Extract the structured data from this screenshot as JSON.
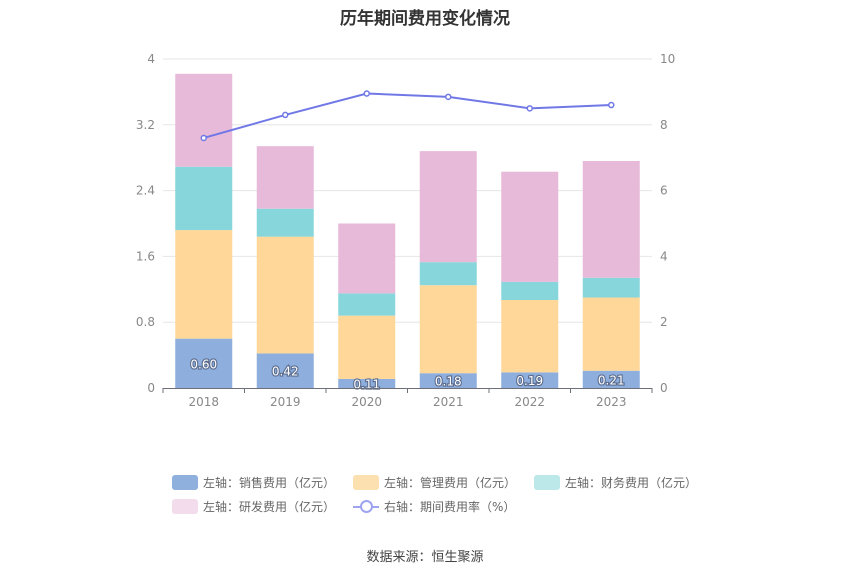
{
  "title": "历年期间费用变化情况",
  "source": "数据来源：恒生聚源",
  "legend": [
    {
      "label": "左轴：销售费用（亿元）",
      "color": "#8fb0dd",
      "kind": "bar"
    },
    {
      "label": "左轴：管理费用（亿元）",
      "color": "#fde0b0",
      "kind": "bar"
    },
    {
      "label": "左轴：财务费用（亿元）",
      "color": "#bde8ea",
      "kind": "bar"
    },
    {
      "label": "左轴：研发费用（亿元）",
      "color": "#f3dcec",
      "kind": "bar"
    },
    {
      "label": "右轴：期间费用率（%）",
      "color": "#9da3ee",
      "kind": "line"
    }
  ],
  "chart_data": {
    "type": "bar",
    "stacked": true,
    "categories": [
      "2018",
      "2019",
      "2020",
      "2021",
      "2022",
      "2023"
    ],
    "series": [
      {
        "name": "左轴：销售费用（亿元）",
        "axis": "left",
        "color": "#8eaede",
        "values": [
          0.6,
          0.42,
          0.11,
          0.18,
          0.19,
          0.21
        ]
      },
      {
        "name": "左轴：管理费用（亿元）",
        "axis": "left",
        "color": "#ffd899",
        "values": [
          1.32,
          1.42,
          0.77,
          1.07,
          0.88,
          0.89
        ]
      },
      {
        "name": "左轴：财务费用（亿元）",
        "axis": "left",
        "color": "#87d6db",
        "values": [
          0.77,
          0.34,
          0.27,
          0.28,
          0.22,
          0.24
        ]
      },
      {
        "name": "左轴：研发费用（亿元）",
        "axis": "left",
        "color": "#e8bada",
        "values": [
          1.13,
          0.76,
          0.85,
          1.35,
          1.34,
          1.42
        ]
      },
      {
        "name": "右轴：期间费用率（%）",
        "axis": "right",
        "type": "line",
        "color": "#7078e6",
        "values": [
          7.6,
          8.3,
          8.95,
          8.85,
          8.5,
          8.6
        ]
      }
    ],
    "data_labels": [
      "0.60",
      "0.42",
      "0.11",
      "0.18",
      "0.19",
      "0.21"
    ],
    "ylim_left": [
      0,
      4
    ],
    "yticks_left": [
      "0",
      "0.8",
      "1.6",
      "2.4",
      "3.2",
      "4"
    ],
    "ylim_right": [
      0,
      10
    ],
    "yticks_right": [
      "0",
      "2",
      "4",
      "6",
      "8",
      "10"
    ],
    "grid": true,
    "legend_position": "bottom"
  }
}
